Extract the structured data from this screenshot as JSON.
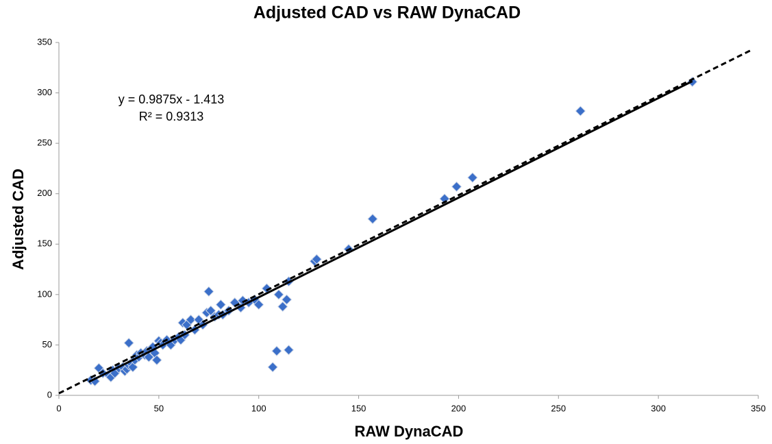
{
  "chart_data": {
    "type": "scatter",
    "title": "Adjusted CAD vs RAW DynaCAD",
    "x_label": "RAW DynaCAD",
    "y_label": "Adjusted CAD",
    "annotations": [
      "y = 0.9875x - 1.413",
      "R² = 0.9313"
    ],
    "xlim": [
      0,
      350
    ],
    "ylim": [
      0,
      350
    ],
    "xticks": [
      0,
      50,
      100,
      150,
      200,
      250,
      300,
      350
    ],
    "yticks": [
      0,
      50,
      100,
      150,
      200,
      250,
      300,
      350
    ],
    "series": [
      {
        "color": "#3b6fc9",
        "x": [
          16,
          18,
          20,
          22,
          25,
          26,
          27,
          28,
          30,
          32,
          33,
          34,
          35,
          35,
          36,
          37,
          38,
          39,
          40,
          41,
          43,
          44,
          45,
          46,
          47,
          48,
          49,
          50,
          51,
          52,
          54,
          56,
          58,
          60,
          61,
          62,
          63,
          64,
          66,
          68,
          70,
          72,
          74,
          75,
          76,
          78,
          80,
          81,
          82,
          85,
          88,
          91,
          92,
          95,
          98,
          100,
          104,
          107,
          109,
          110,
          112,
          114,
          115,
          115,
          128,
          129,
          145,
          157,
          193,
          199,
          207,
          261,
          317
        ],
        "values": [
          15,
          14,
          27,
          22,
          20,
          18,
          25,
          22,
          27,
          28,
          24,
          26,
          52,
          30,
          32,
          28,
          35,
          40,
          38,
          42,
          40,
          44,
          38,
          46,
          48,
          42,
          35,
          54,
          52,
          50,
          55,
          50,
          55,
          58,
          55,
          72,
          60,
          70,
          75,
          65,
          75,
          70,
          82,
          103,
          84,
          78,
          80,
          90,
          80,
          84,
          92,
          87,
          94,
          92,
          95,
          90,
          106,
          28,
          44,
          100,
          88,
          95,
          45,
          113,
          133,
          135,
          145,
          175,
          195,
          207,
          216,
          282,
          311
        ]
      }
    ],
    "trendline": {
      "color": "#000000",
      "x": [
        15,
        317
      ],
      "y": [
        13.4,
        311.6
      ]
    },
    "reference_line": {
      "color": "#000000",
      "x": [
        0,
        346
      ],
      "y": [
        2,
        342
      ]
    }
  }
}
